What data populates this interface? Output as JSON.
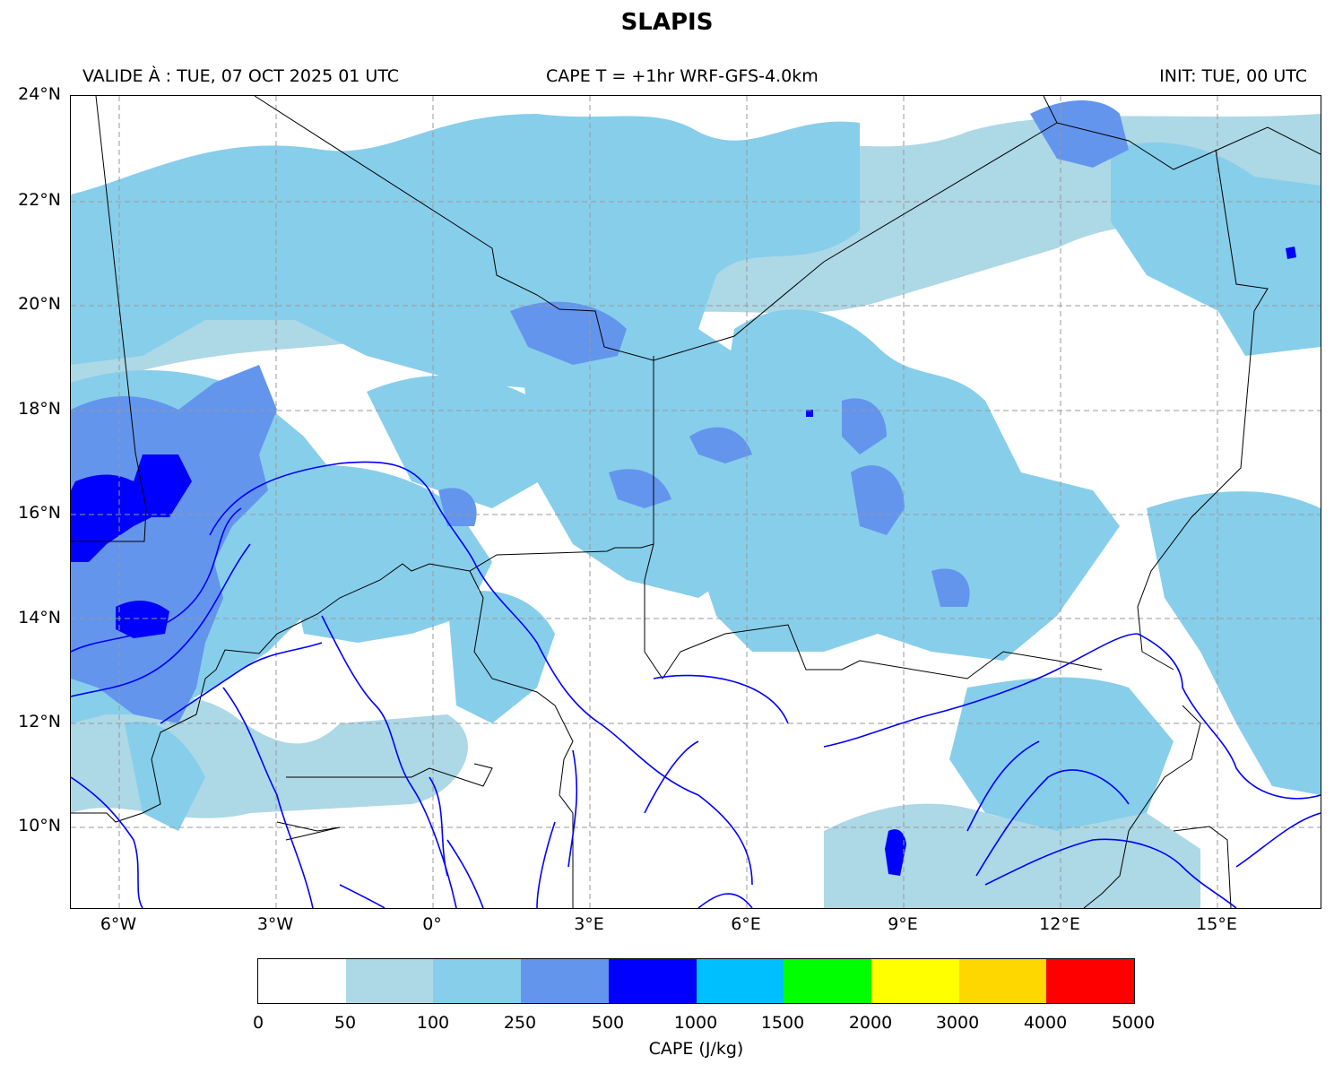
{
  "title": "SLAPIS",
  "header": {
    "valid": "VALIDE À : TUE, 07 OCT 2025 01 UTC",
    "center": "CAPE T = +1hr WRF-GFS-4.0km",
    "init": "INIT: TUE, 00 UTC"
  },
  "map": {
    "lat_labels": [
      "24°N",
      "22°N",
      "20°N",
      "18°N",
      "16°N",
      "14°N",
      "12°N",
      "10°N"
    ],
    "lon_labels": [
      "6°W",
      "3°W",
      "0°",
      "3°E",
      "6°E",
      "9°E",
      "12°E",
      "15°E"
    ],
    "extent": {
      "lon_min": -6.9,
      "lon_max": 17.0,
      "lat_min": 8.5,
      "lat_max": 24.0
    },
    "borders_color": "#000000",
    "rivers_color": "#0000ff",
    "grid": "dashed"
  },
  "colorbar": {
    "label": "CAPE (J/kg)",
    "ticks": [
      "0",
      "50",
      "100",
      "250",
      "500",
      "1000",
      "1500",
      "2000",
      "3000",
      "4000",
      "5000"
    ],
    "colors": [
      "#ffffff",
      "#add8e6",
      "#87ceeb",
      "#6495ed",
      "#0000ff",
      "#00bfff",
      "#00ff00",
      "#ffff00",
      "#ffd700",
      "#ff0000"
    ]
  }
}
